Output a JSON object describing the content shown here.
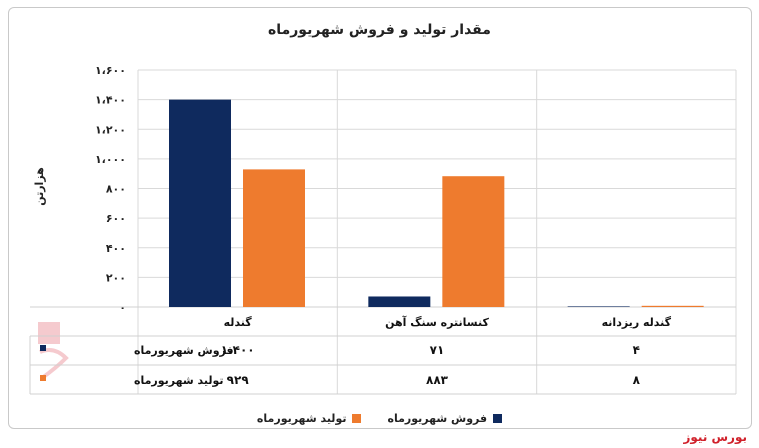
{
  "chart_data": {
    "type": "bar",
    "title": "مقدار تولید و فروش شهریورماه",
    "ylabel": "هزارتن",
    "ylim": [
      0,
      1600
    ],
    "yticks": [
      "۰",
      "۲۰۰",
      "۴۰۰",
      "۶۰۰",
      "۸۰۰",
      "۱،۰۰۰",
      "۱،۲۰۰",
      "۱،۴۰۰",
      "۱،۶۰۰"
    ],
    "ytick_values": [
      0,
      200,
      400,
      600,
      800,
      1000,
      1200,
      1400,
      1600
    ],
    "categories": [
      "گندله",
      "کنسانتره سنگ آهن",
      "گندله ریزدانه"
    ],
    "series": [
      {
        "name": "فروش شهریورماه",
        "values": [
          1400,
          71,
          4
        ],
        "labels": [
          "۱،۴۰۰",
          "۷۱",
          "۴"
        ],
        "color": "#0f2a5e"
      },
      {
        "name": "تولید شهریورماه",
        "values": [
          929,
          883,
          8
        ],
        "labels": [
          "۹۲۹",
          "۸۸۳",
          "۸"
        ],
        "color": "#ee7b2e"
      }
    ],
    "grid": true,
    "legend": "bottom"
  },
  "brand": "بورس نیوز"
}
